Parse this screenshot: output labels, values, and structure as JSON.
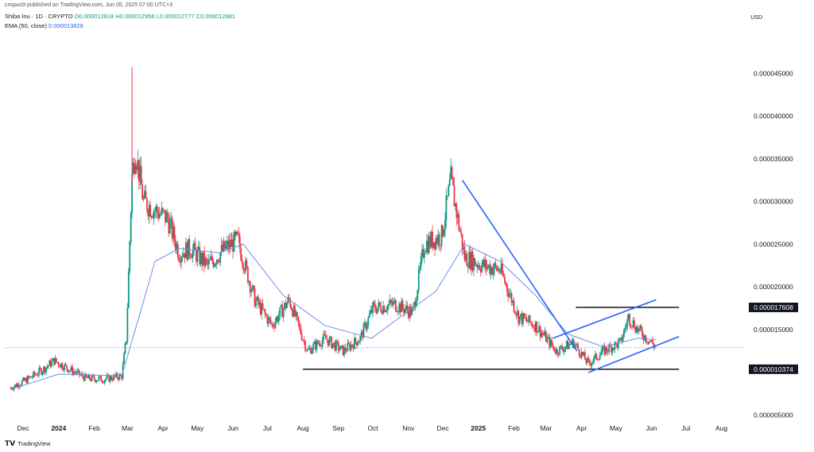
{
  "header": {
    "published": "crispus9 published on TradingView.com, Jun 05, 2025 07:00 UTC+3",
    "symbol": "Shiba Inu · 1D · CRYPTO",
    "ohlc": "O0.000012818 H0.000012956 L0.000012777 C0.000012881",
    "ema_label": "EMA (50, close)",
    "ema_value": "0.000013828",
    "currency": "USD"
  },
  "footer": {
    "logo_text": "TradingView"
  },
  "colors": {
    "up": "#089981",
    "down": "#f23645",
    "ema": "#6c8fe8",
    "trend": "#2962ff",
    "level": "#000000",
    "last": "#2962ff"
  },
  "chart_data": {
    "type": "candlestick",
    "y_scale": "linear",
    "ylim": [
      4.5e-06,
      4.8e-05
    ],
    "y_ticks": [
      "0.000005000",
      "0.000010374",
      "0.000015000",
      "0.000017608",
      "0.000020000",
      "0.000025000",
      "0.000030000",
      "0.000035000",
      "0.000040000",
      "0.000045000"
    ],
    "x_ticks": [
      "Dec",
      "2024",
      "Feb",
      "Mar",
      "Apr",
      "May",
      "Jun",
      "Jul",
      "Aug",
      "Sep",
      "Oct",
      "Nov",
      "Dec",
      "2025",
      "Feb",
      "Mar",
      "Apr",
      "May",
      "Jun",
      "Jul",
      "Aug"
    ],
    "price_series": {
      "name": "Shiba Inu",
      "closes": [
        [
          "2023-11-20",
          8.2e-06
        ],
        [
          "2023-12-05",
          9.2e-06
        ],
        [
          "2023-12-20",
          1.05e-05
        ],
        [
          "2023-12-28",
          1.14e-05
        ],
        [
          "2024-01-10",
          1.04e-05
        ],
        [
          "2024-01-25",
          9.3e-06
        ],
        [
          "2024-02-10",
          9.2e-06
        ],
        [
          "2024-02-25",
          9.6e-06
        ],
        [
          "2024-02-29",
          1.4e-05
        ],
        [
          "2024-03-05",
          3.3e-05
        ],
        [
          "2024-03-08",
          3.6e-05
        ],
        [
          "2024-03-15",
          3e-05
        ],
        [
          "2024-03-25",
          2.9e-05
        ],
        [
          "2024-04-05",
          2.8e-05
        ],
        [
          "2024-04-15",
          2.4e-05
        ],
        [
          "2024-04-25",
          2.45e-05
        ],
        [
          "2024-05-10",
          2.25e-05
        ],
        [
          "2024-05-25",
          2.45e-05
        ],
        [
          "2024-06-05",
          2.55e-05
        ],
        [
          "2024-06-20",
          1.85e-05
        ],
        [
          "2024-07-05",
          1.55e-05
        ],
        [
          "2024-07-20",
          1.85e-05
        ],
        [
          "2024-08-05",
          1.25e-05
        ],
        [
          "2024-08-20",
          1.4e-05
        ],
        [
          "2024-09-05",
          1.25e-05
        ],
        [
          "2024-09-20",
          1.4e-05
        ],
        [
          "2024-10-01",
          1.75e-05
        ],
        [
          "2024-10-20",
          1.8e-05
        ],
        [
          "2024-11-05",
          1.7e-05
        ],
        [
          "2024-11-15",
          2.5e-05
        ],
        [
          "2024-11-30",
          2.6e-05
        ],
        [
          "2024-12-08",
          3.25e-05
        ],
        [
          "2024-12-20",
          2.35e-05
        ],
        [
          "2025-01-05",
          2.25e-05
        ],
        [
          "2025-01-20",
          2.2e-05
        ],
        [
          "2025-02-05",
          1.65e-05
        ],
        [
          "2025-02-20",
          1.55e-05
        ],
        [
          "2025-03-10",
          1.25e-05
        ],
        [
          "2025-03-25",
          1.35e-05
        ],
        [
          "2025-04-07",
          1.1e-05
        ],
        [
          "2025-04-20",
          1.25e-05
        ],
        [
          "2025-05-05",
          1.35e-05
        ],
        [
          "2025-05-12",
          1.65e-05
        ],
        [
          "2025-05-20",
          1.5e-05
        ],
        [
          "2025-06-01",
          1.35e-05
        ],
        [
          "2025-06-05",
          1.288e-05
        ]
      ]
    },
    "ema_series": {
      "name": "EMA (50, close)",
      "points": [
        [
          "2023-11-20",
          8e-06
        ],
        [
          "2024-01-01",
          9.8e-06
        ],
        [
          "2024-02-25",
          9.6e-06
        ],
        [
          "2024-03-10",
          1.6e-05
        ],
        [
          "2024-03-25",
          2.3e-05
        ],
        [
          "2024-04-15",
          2.45e-05
        ],
        [
          "2024-05-20",
          2.4e-05
        ],
        [
          "2024-06-10",
          2.5e-05
        ],
        [
          "2024-07-15",
          1.9e-05
        ],
        [
          "2024-08-20",
          1.55e-05
        ],
        [
          "2024-09-30",
          1.4e-05
        ],
        [
          "2024-10-25",
          1.65e-05
        ],
        [
          "2024-11-25",
          1.95e-05
        ],
        [
          "2024-12-20",
          2.5e-05
        ],
        [
          "2025-01-20",
          2.3e-05
        ],
        [
          "2025-02-20",
          1.9e-05
        ],
        [
          "2025-03-20",
          1.45e-05
        ],
        [
          "2025-04-20",
          1.3e-05
        ],
        [
          "2025-05-20",
          1.4e-05
        ],
        [
          "2025-06-05",
          1.3828e-05
        ]
      ]
    },
    "drawings": {
      "horizontal_levels": [
        {
          "price": 1.7608e-05,
          "label": "0.000017608",
          "from": "2025-03-27",
          "to": "2025-06-25"
        },
        {
          "price": 1.0374e-05,
          "label": "0.000010374",
          "from": "2024-08-01",
          "to": "2025-06-25"
        }
      ],
      "trendlines": [
        {
          "from": [
            "2024-12-18",
            3.25e-05
          ],
          "to": [
            "2025-03-28",
            1.25e-05
          ]
        },
        {
          "from": [
            "2025-03-07",
            1.4e-05
          ],
          "to": [
            "2025-06-05",
            1.85e-05
          ]
        },
        {
          "from": [
            "2025-04-07",
            1e-05
          ],
          "to": [
            "2025-06-25",
            1.42e-05
          ]
        }
      ],
      "last_price_line": 1.288e-05
    }
  }
}
